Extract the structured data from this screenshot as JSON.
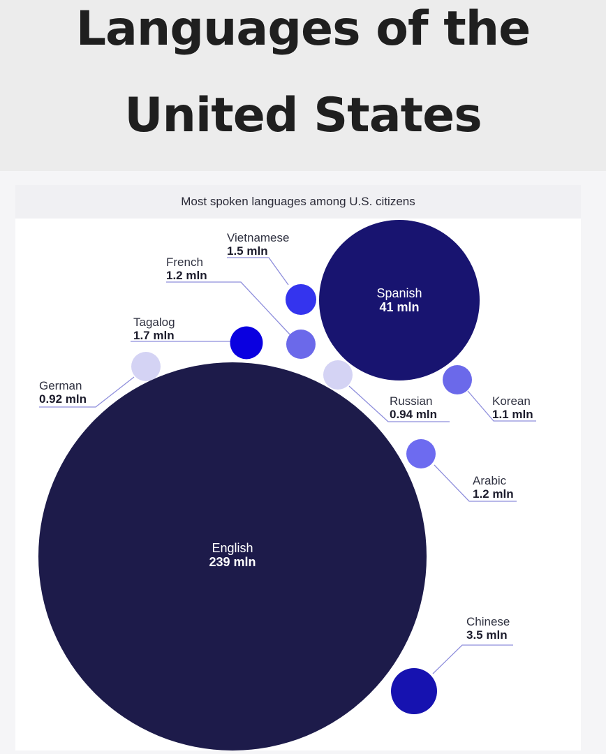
{
  "title_lines": [
    "Languages of the",
    "United States"
  ],
  "chart_data": {
    "type": "bubble",
    "subtitle": "Most spoken languages among U.S. citizens",
    "unit": "mln",
    "points": [
      {
        "name": "English",
        "value": 239,
        "value_label": "239 mln",
        "color": "#1d1b4a"
      },
      {
        "name": "Spanish",
        "value": 41,
        "value_label": "41 mln",
        "color": "#181470"
      },
      {
        "name": "Chinese",
        "value": 3.5,
        "value_label": "3.5 mln",
        "color": "#1612b0"
      },
      {
        "name": "Tagalog",
        "value": 1.7,
        "value_label": "1.7 mln",
        "color": "#0a00e0"
      },
      {
        "name": "Vietnamese",
        "value": 1.5,
        "value_label": "1.5 mln",
        "color": "#3434ee"
      },
      {
        "name": "French",
        "value": 1.2,
        "value_label": "1.2 mln",
        "color": "#6b69ea"
      },
      {
        "name": "Arabic",
        "value": 1.2,
        "value_label": "1.2 mln",
        "color": "#6d6bf0"
      },
      {
        "name": "Korean",
        "value": 1.1,
        "value_label": "1.1 mln",
        "color": "#6b69ea"
      },
      {
        "name": "Russian",
        "value": 0.94,
        "value_label": "0.94 mln",
        "color": "#d4d3f4"
      },
      {
        "name": "German",
        "value": 0.92,
        "value_label": "0.92 mln",
        "color": "#d4d3f4"
      }
    ]
  }
}
